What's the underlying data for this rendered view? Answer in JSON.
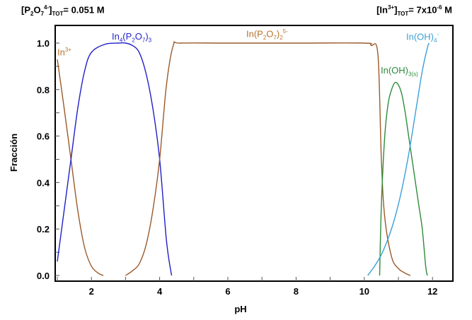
{
  "header": {
    "left": {
      "open": "[P",
      "s1": "2",
      "o": "O",
      "s2": "7",
      "charge": "4-",
      "close": "]",
      "tot": "TOT",
      "value": "= 0.051 M"
    },
    "right": {
      "open": "[In",
      "charge": "3+",
      "close": "]",
      "tot": "TOT",
      "value": "= 7x10",
      "exp": "-6",
      "unit": " M"
    }
  },
  "labels": {
    "in3": {
      "base": "In",
      "sup": "3+"
    },
    "in4p2o7_3": {
      "a": "In",
      "s1": "4",
      "b": "(P",
      "s2": "2",
      "c": "O",
      "s3": "7",
      "d": ")",
      "s4": "3"
    },
    "inp2o7_2": {
      "a": "In(P",
      "s1": "2",
      "b": "O",
      "s2": "7",
      "c": ")",
      "s3": "2",
      "sup": "5-"
    },
    "inoh3s": {
      "a": "In(OH)",
      "sub": "3(s)"
    },
    "inoh4": {
      "a": "In(OH)",
      "sub": "4",
      "sup": "-"
    }
  },
  "chart_data": {
    "type": "line",
    "title": "",
    "annotations": [
      "[P2O7^4-]TOT = 0.051 M",
      "[In^3+]TOT = 7x10^-6 M"
    ],
    "xlabel": "pH",
    "ylabel": "Fracción",
    "xlim": [
      0.95,
      12.6
    ],
    "ylim": [
      0.0,
      1.05
    ],
    "xticks": [
      2,
      4,
      6,
      8,
      10,
      12
    ],
    "yticks": [
      "0.0",
      "0.2",
      "0.4",
      "0.6",
      "0.8",
      "1.0"
    ],
    "grid": false,
    "legend": "inline labels",
    "series": [
      {
        "name": "In3+",
        "color": "#9c5a2a",
        "x": [
          1.0,
          1.2,
          1.4,
          1.6,
          1.8,
          2.0,
          2.2,
          2.35
        ],
        "y": [
          0.93,
          0.72,
          0.5,
          0.28,
          0.12,
          0.04,
          0.01,
          0.0
        ]
      },
      {
        "name": "In4(P2O7)3",
        "color": "#2020c8",
        "x": [
          1.0,
          1.2,
          1.4,
          1.6,
          1.8,
          2.0,
          2.4,
          2.8,
          3.0,
          3.2,
          3.4,
          3.6,
          3.8,
          4.0,
          4.2,
          4.35
        ],
        "y": [
          0.06,
          0.28,
          0.5,
          0.72,
          0.88,
          0.96,
          0.995,
          1.0,
          1.0,
          0.99,
          0.96,
          0.87,
          0.72,
          0.5,
          0.15,
          0.0
        ]
      },
      {
        "name": "In(P2O7)2 5-",
        "color": "#9c5a2a",
        "x": [
          3.0,
          3.2,
          3.4,
          3.6,
          3.8,
          4.0,
          4.2,
          4.4,
          4.6,
          6.0,
          8.0,
          10.0,
          10.2,
          10.4,
          10.5,
          10.6,
          10.8,
          11.0,
          11.2,
          11.35
        ],
        "y": [
          0.0,
          0.02,
          0.05,
          0.13,
          0.28,
          0.5,
          0.82,
          0.99,
          1.0,
          1.0,
          1.0,
          1.0,
          0.99,
          0.95,
          0.5,
          0.25,
          0.08,
          0.03,
          0.01,
          0.0
        ]
      },
      {
        "name": "In(OH)3(s)",
        "color": "#2e8b3a",
        "x": [
          10.45,
          10.5,
          10.6,
          10.7,
          10.8,
          10.9,
          11.0,
          11.1,
          11.2,
          11.3,
          11.4,
          11.5,
          11.6,
          11.7,
          11.8,
          11.85
        ],
        "y": [
          0.0,
          0.3,
          0.6,
          0.74,
          0.8,
          0.83,
          0.82,
          0.78,
          0.7,
          0.6,
          0.5,
          0.4,
          0.3,
          0.2,
          0.04,
          0.0
        ]
      },
      {
        "name": "In(OH)4-",
        "color": "#3aa0d8",
        "x": [
          10.1,
          10.3,
          10.5,
          10.7,
          10.9,
          11.1,
          11.3,
          11.5,
          11.7,
          11.85,
          11.9
        ],
        "y": [
          0.0,
          0.04,
          0.09,
          0.16,
          0.25,
          0.37,
          0.52,
          0.7,
          0.88,
          0.98,
          1.0
        ]
      }
    ]
  }
}
